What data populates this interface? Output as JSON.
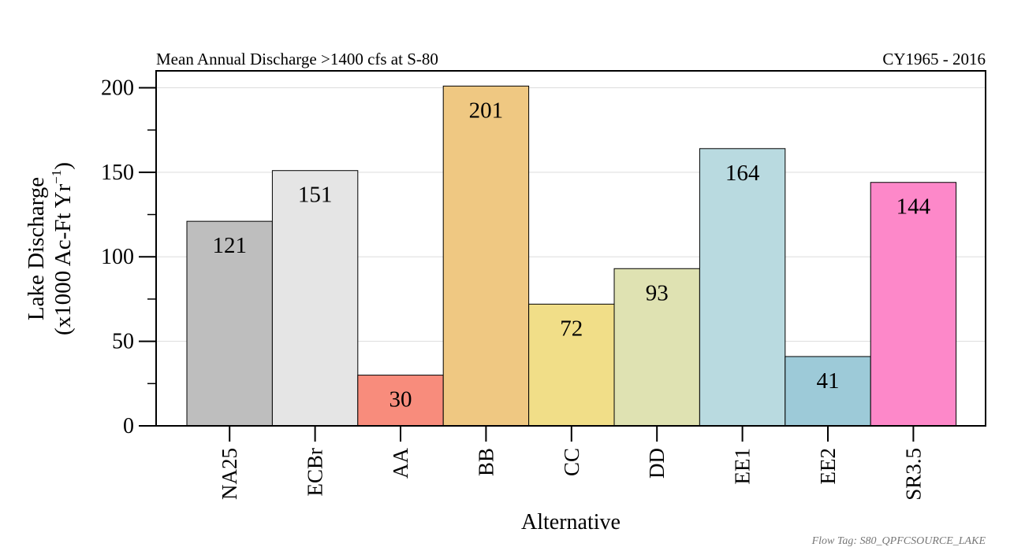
{
  "chart_data": {
    "type": "bar",
    "title": "Mean Annual Discharge >1400 cfs at S-80",
    "period": "CY1965 - 2016",
    "xlabel": "Alternative",
    "ylabel_line1": "Lake Discharge",
    "ylabel_line2_prefix": "(x1000 Ac-Ft Yr",
    "ylabel_line2_sup": "−1",
    "ylabel_line2_suffix": ")",
    "ylim": [
      0,
      210
    ],
    "yticks": [
      0,
      50,
      100,
      150,
      200
    ],
    "grid": true,
    "categories": [
      "NA25",
      "ECBr",
      "AA",
      "BB",
      "CC",
      "DD",
      "EE1",
      "EE2",
      "SR3.5"
    ],
    "values": [
      121,
      151,
      30,
      201,
      72,
      93,
      164,
      41,
      144
    ],
    "colors": [
      "#bebebe",
      "#e5e5e5",
      "#f88c7c",
      "#efc882",
      "#f1de88",
      "#dfe2b2",
      "#b9dae0",
      "#9dcad8",
      "#fd88c9"
    ]
  },
  "footer": "Flow Tag: S80_QPFCSOURCE_LAKE"
}
